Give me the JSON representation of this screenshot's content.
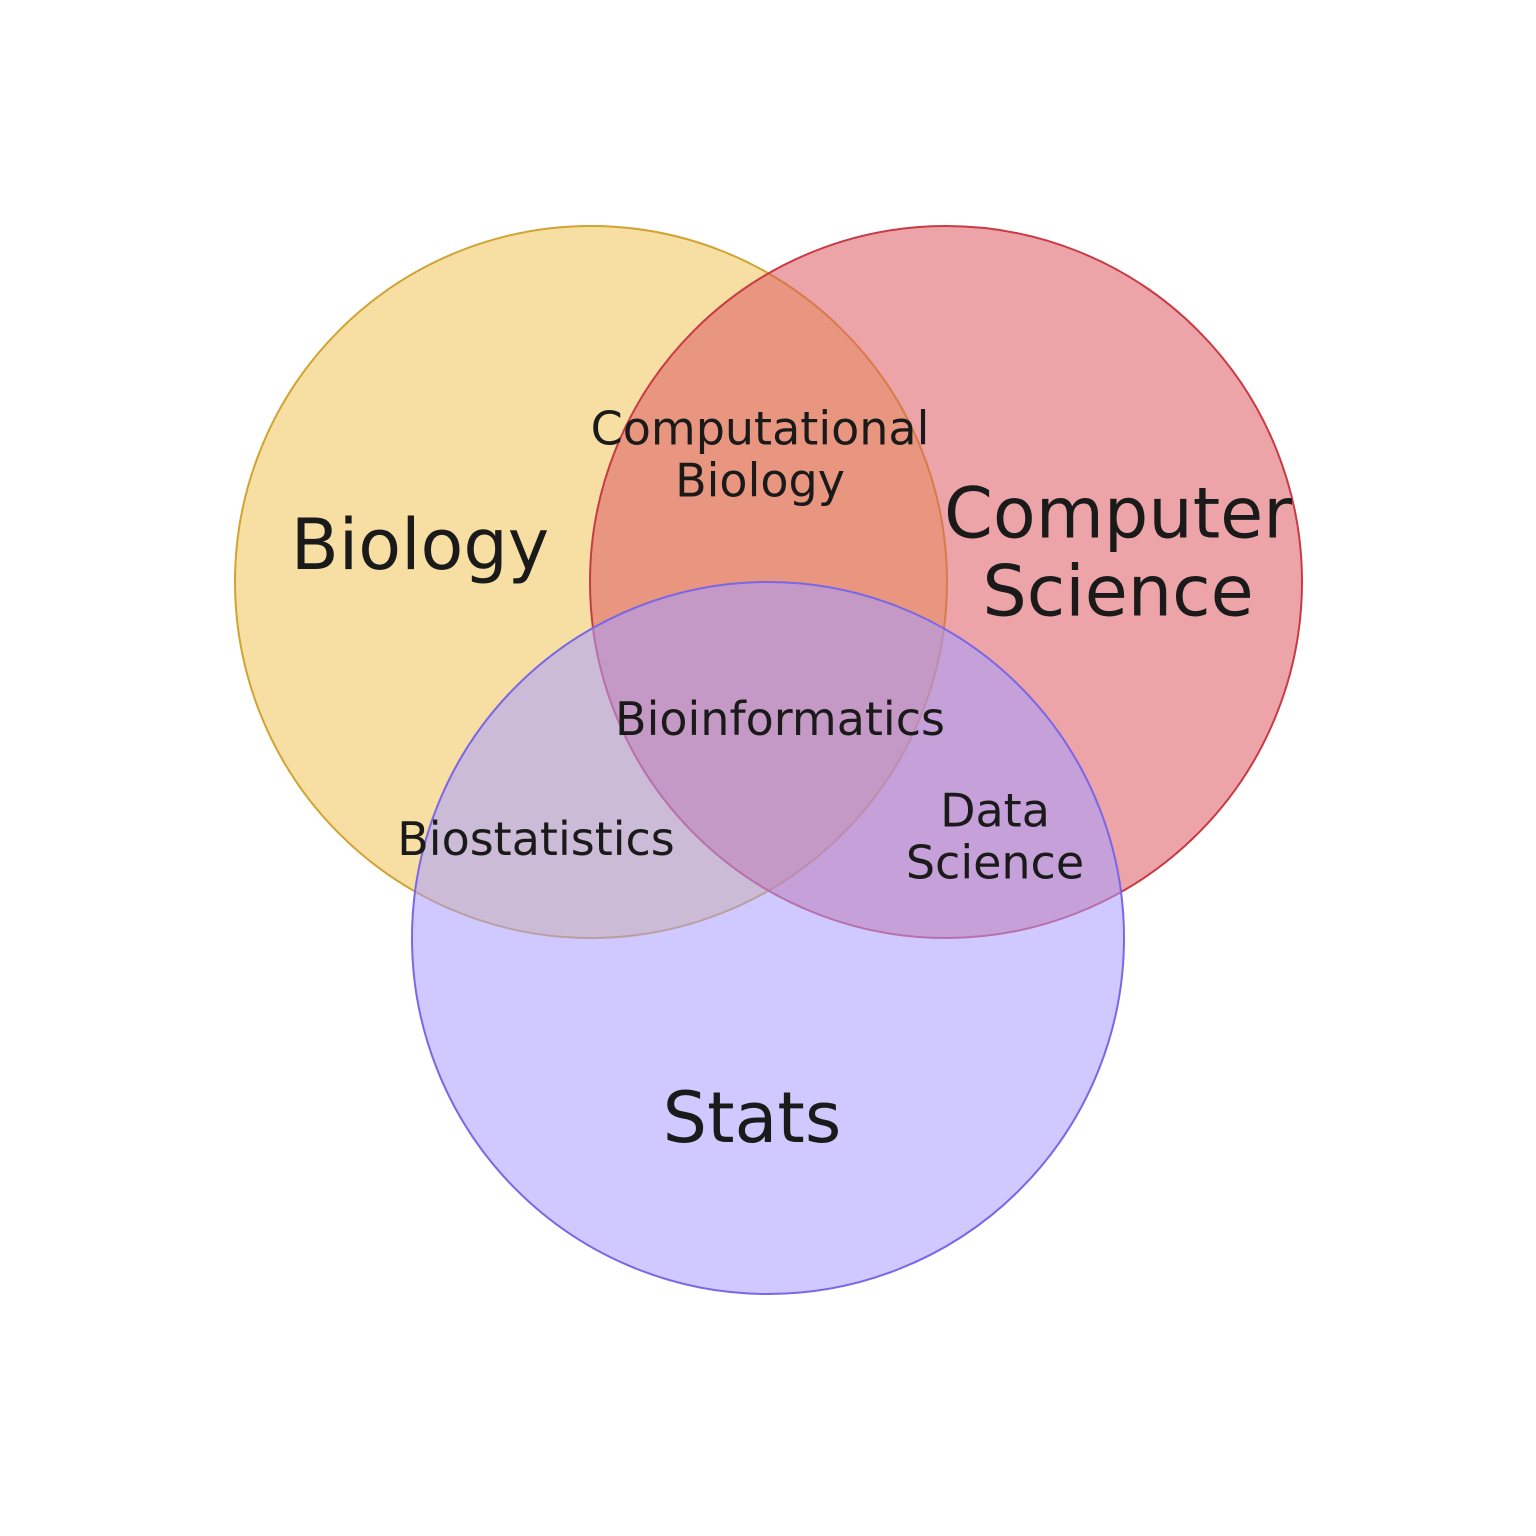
{
  "sets": [
    {
      "id": "biology",
      "label": "Biology",
      "fill": "#f0c45a",
      "stroke": "#d1a332"
    },
    {
      "id": "computer-science",
      "label_lines": [
        "Computer",
        "Science"
      ],
      "fill": "#dc5a63",
      "stroke": "#c93b44"
    },
    {
      "id": "stats",
      "label": "Stats",
      "fill": "#a89cff",
      "stroke": "#7a66e6"
    }
  ],
  "regions": {
    "computational_biology": {
      "lines": [
        "Computational",
        "Biology"
      ]
    },
    "bioinformatics": {
      "lines": [
        "Bioinformatics"
      ]
    },
    "biostatistics": {
      "lines": [
        "Biostatistics"
      ]
    },
    "data_science": {
      "lines": [
        "Data",
        "Science"
      ]
    }
  }
}
